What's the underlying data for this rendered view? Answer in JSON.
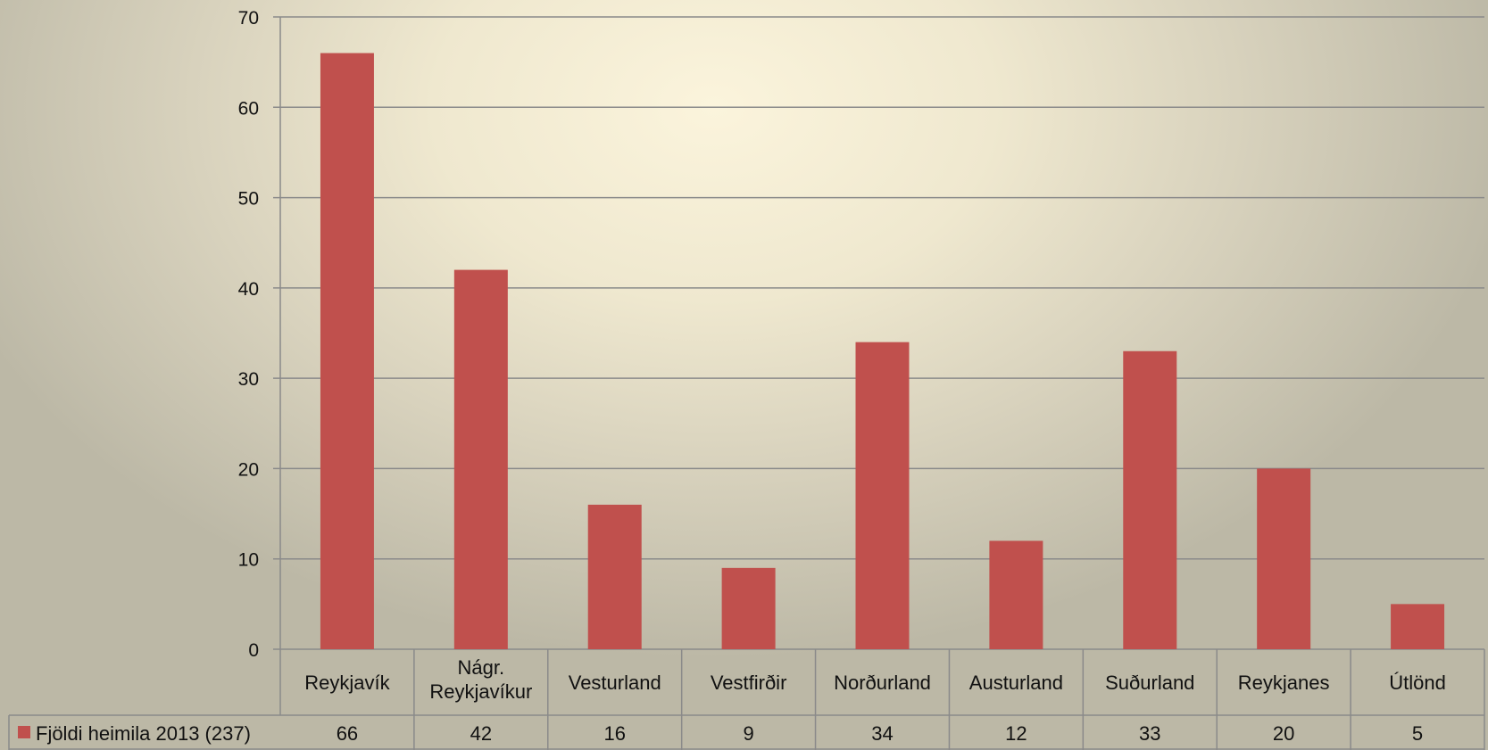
{
  "chart_data": {
    "type": "bar",
    "categories": [
      [
        "Reykjavík"
      ],
      [
        "Nágr.",
        "Reykjavíkur"
      ],
      [
        "Vesturland"
      ],
      [
        "Vestfirðir"
      ],
      [
        "Norðurland"
      ],
      [
        "Austurland"
      ],
      [
        "Suðurland"
      ],
      [
        "Reykjanes"
      ],
      [
        "Útlönd"
      ]
    ],
    "series": [
      {
        "name": "Fjöldi heimila 2013 (237)",
        "values": [
          66,
          42,
          16,
          9,
          34,
          12,
          33,
          20,
          5
        ],
        "color": "#c0504d"
      }
    ],
    "ylim": [
      0,
      70
    ],
    "yticks": [
      0,
      10,
      20,
      30,
      40,
      50,
      60,
      70
    ],
    "grid": true,
    "legend": "data-table-left",
    "data_table": true
  }
}
